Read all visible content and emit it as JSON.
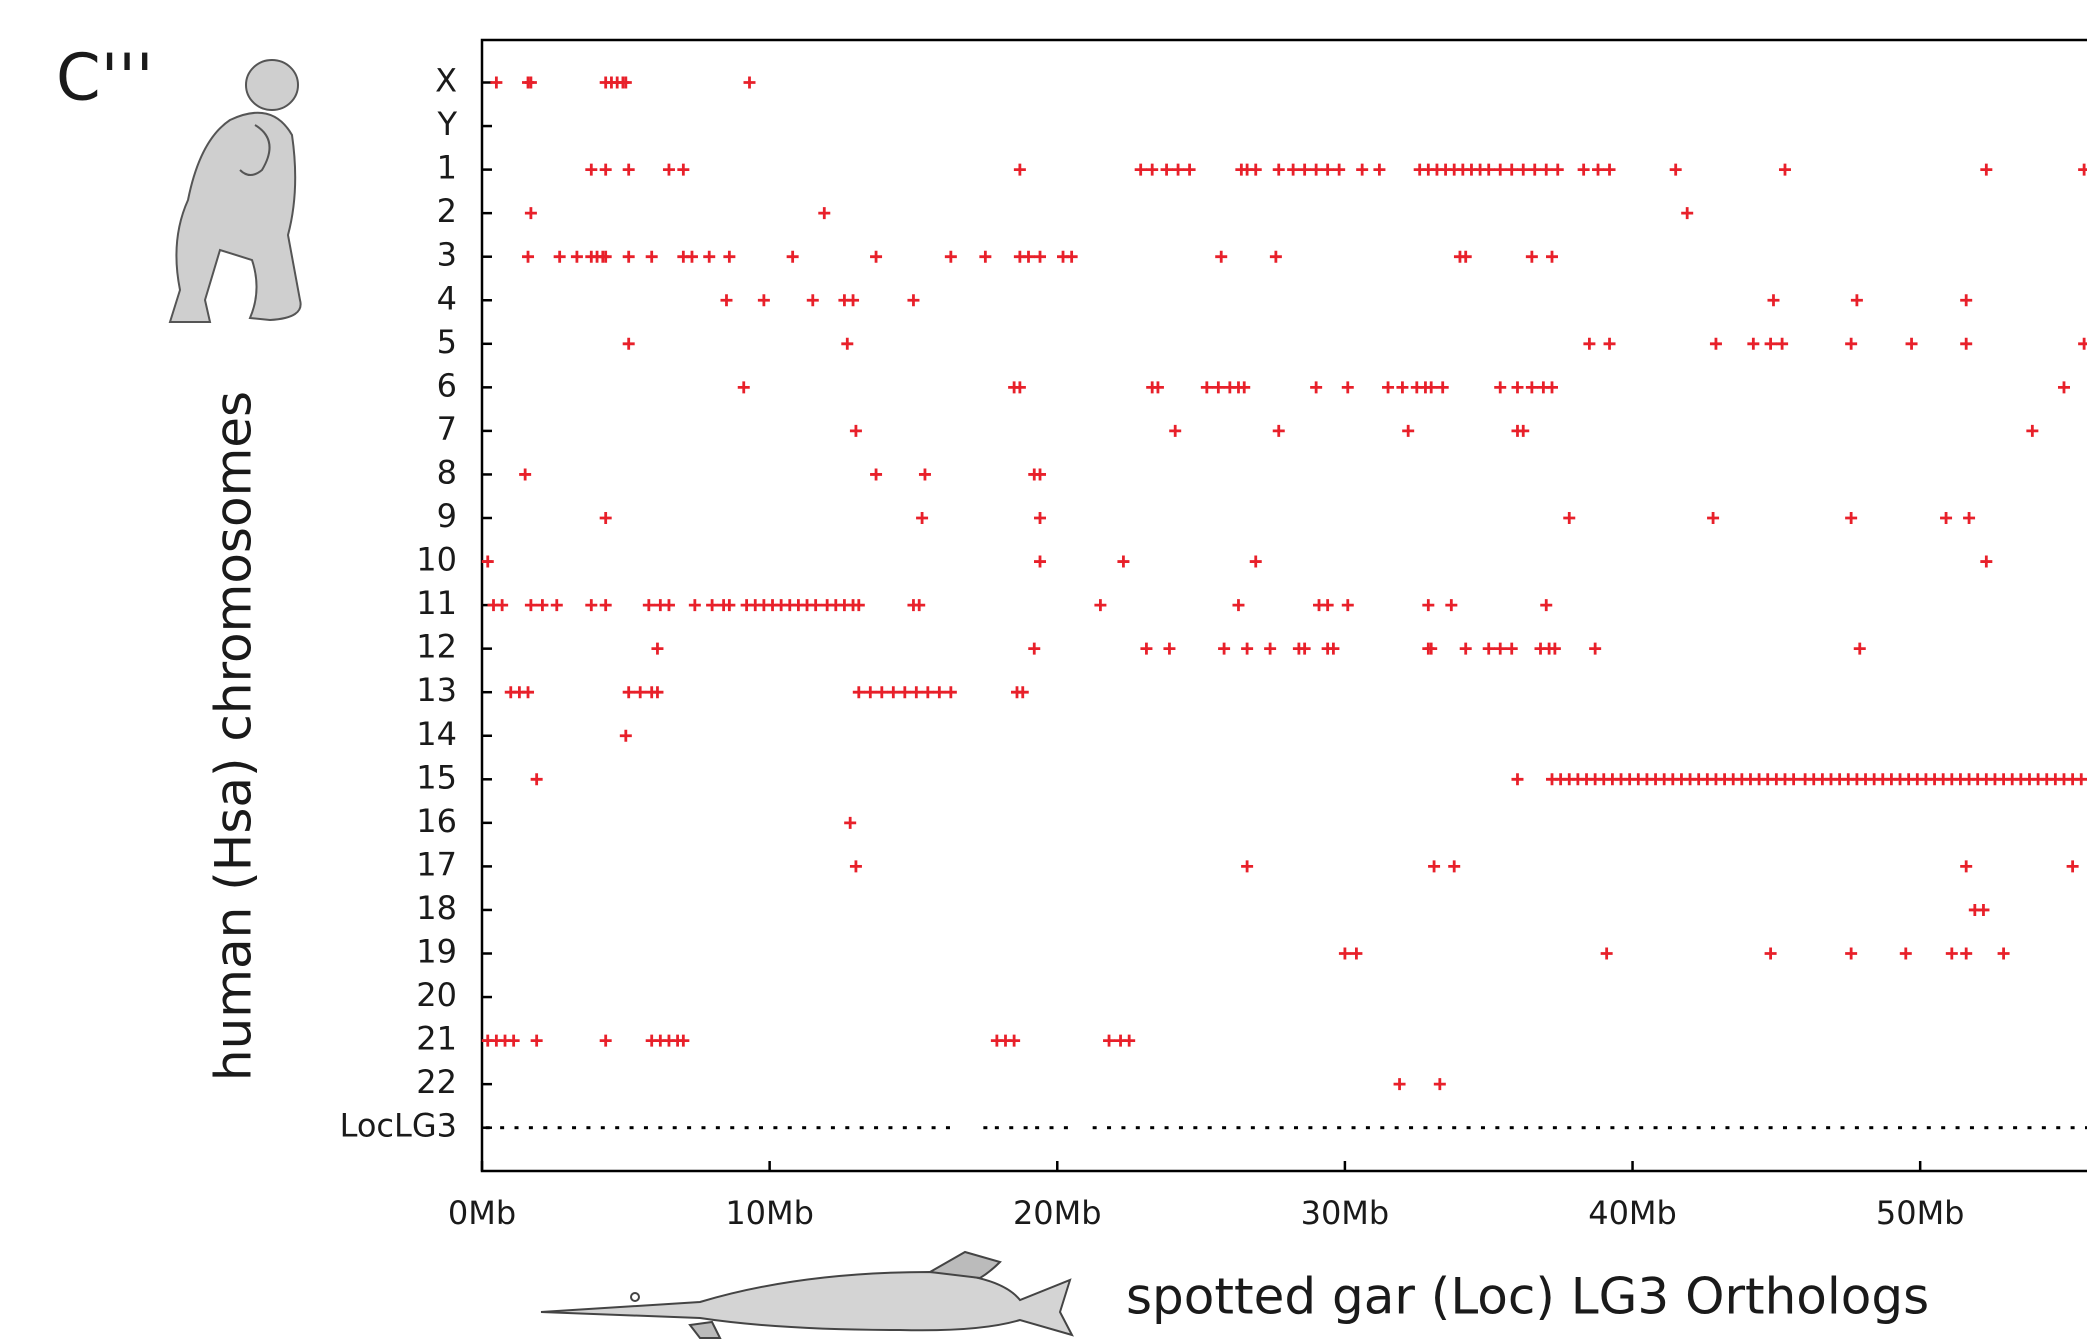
{
  "chart_data": {
    "type": "scatter",
    "panel_label": "C'''",
    "xlabel": "spotted gar (Loc) LG3 Orthologs",
    "ylabel": "human (Hsa) chromosomes",
    "xlim": [
      0,
      55.8
    ],
    "xticks": [
      {
        "value": 0,
        "label": "0Mb"
      },
      {
        "value": 10,
        "label": "10Mb"
      },
      {
        "value": 20,
        "label": "20Mb"
      },
      {
        "value": 30,
        "label": "30Mb"
      },
      {
        "value": 40,
        "label": "40Mb"
      },
      {
        "value": 50,
        "label": "50Mb"
      }
    ],
    "series": [
      {
        "name": "X",
        "color": "#e8202a",
        "marker": "plus",
        "x": [
          0.5,
          1.6,
          1.7,
          4.3,
          4.5,
          4.7,
          4.9,
          5.0,
          9.3
        ]
      },
      {
        "name": "Y",
        "color": "#e8202a",
        "marker": "plus",
        "x": []
      },
      {
        "name": "1",
        "color": "#e8202a",
        "marker": "plus",
        "x": [
          3.8,
          4.3,
          5.1,
          6.5,
          7.0,
          18.7,
          22.9,
          23.3,
          23.8,
          24.2,
          24.6,
          26.4,
          26.6,
          26.9,
          27.7,
          28.2,
          28.6,
          29.0,
          29.4,
          29.8,
          30.6,
          31.2,
          32.6,
          32.9,
          33.2,
          33.5,
          33.8,
          34.1,
          34.4,
          34.7,
          35.0,
          35.4,
          35.8,
          36.2,
          36.6,
          37.0,
          37.4,
          38.3,
          38.8,
          39.2,
          41.5,
          45.3,
          52.3,
          55.7
        ]
      },
      {
        "name": "2",
        "color": "#e8202a",
        "marker": "plus",
        "x": [
          1.7,
          11.9,
          41.9
        ]
      },
      {
        "name": "3",
        "color": "#e8202a",
        "marker": "plus",
        "x": [
          1.6,
          2.7,
          3.3,
          3.8,
          4.0,
          4.2,
          4.3,
          5.1,
          5.9,
          7.0,
          7.3,
          7.9,
          8.6,
          10.8,
          13.7,
          16.3,
          17.5,
          18.7,
          19.0,
          19.4,
          20.2,
          20.5,
          25.7,
          27.6,
          34.0,
          34.2,
          36.5,
          37.2
        ]
      },
      {
        "name": "4",
        "color": "#e8202a",
        "marker": "plus",
        "x": [
          8.5,
          9.8,
          11.5,
          12.6,
          12.9,
          15.0,
          44.9,
          47.8,
          51.6
        ]
      },
      {
        "name": "5",
        "color": "#e8202a",
        "marker": "plus",
        "x": [
          5.1,
          12.7,
          38.5,
          39.2,
          42.9,
          44.2,
          44.8,
          45.2,
          47.6,
          49.7,
          51.6,
          55.7
        ]
      },
      {
        "name": "6",
        "color": "#e8202a",
        "marker": "plus",
        "x": [
          9.1,
          18.5,
          18.7,
          23.3,
          23.5,
          25.2,
          25.6,
          26.0,
          26.3,
          26.5,
          29.0,
          30.1,
          31.5,
          32.0,
          32.5,
          32.8,
          33.0,
          33.4,
          35.4,
          36.0,
          36.5,
          36.9,
          37.2,
          55.0
        ]
      },
      {
        "name": "7",
        "color": "#e8202a",
        "marker": "plus",
        "x": [
          13.0,
          24.1,
          27.7,
          32.2,
          36.0,
          36.2,
          53.9
        ]
      },
      {
        "name": "8",
        "color": "#e8202a",
        "marker": "plus",
        "x": [
          1.5,
          13.7,
          15.4,
          19.2,
          19.4
        ]
      },
      {
        "name": "9",
        "color": "#e8202a",
        "marker": "plus",
        "x": [
          4.3,
          15.3,
          19.4,
          37.8,
          42.8,
          47.6,
          50.9,
          51.7
        ]
      },
      {
        "name": "10",
        "color": "#e8202a",
        "marker": "plus",
        "x": [
          0.2,
          19.4,
          22.3,
          26.9,
          52.3
        ]
      },
      {
        "name": "11",
        "color": "#e8202a",
        "marker": "plus",
        "x": [
          0.4,
          0.7,
          1.7,
          2.1,
          2.6,
          3.8,
          4.3,
          5.8,
          6.2,
          6.5,
          7.4,
          8.0,
          8.4,
          8.6,
          9.2,
          9.5,
          9.8,
          10.1,
          10.4,
          10.7,
          11.0,
          11.3,
          11.6,
          12.0,
          12.3,
          12.6,
          12.9,
          13.1,
          15.0,
          15.2,
          21.5,
          26.3,
          29.1,
          29.4,
          30.1,
          32.9,
          33.7,
          37.0
        ]
      },
      {
        "name": "12",
        "color": "#e8202a",
        "marker": "plus",
        "x": [
          6.1,
          19.2,
          23.1,
          23.9,
          25.8,
          26.6,
          27.4,
          28.4,
          28.6,
          29.4,
          29.6,
          32.9,
          33.0,
          34.2,
          35.0,
          35.4,
          35.8,
          36.8,
          37.1,
          37.3,
          38.7,
          47.9
        ]
      },
      {
        "name": "13",
        "color": "#e8202a",
        "marker": "plus",
        "x": [
          1.0,
          1.3,
          1.6,
          5.1,
          5.5,
          5.9,
          6.1,
          13.1,
          13.5,
          13.9,
          14.3,
          14.7,
          15.1,
          15.5,
          15.9,
          16.3,
          18.6,
          18.8
        ]
      },
      {
        "name": "14",
        "color": "#e8202a",
        "marker": "plus",
        "x": [
          5.0
        ]
      },
      {
        "name": "15",
        "color": "#e8202a",
        "marker": "plus",
        "x": [
          1.9,
          36.0,
          37.2,
          37.5,
          37.8,
          38.1,
          38.4,
          38.7,
          39.0,
          39.3,
          39.6,
          39.9,
          40.2,
          40.5,
          40.8,
          41.1,
          41.4,
          41.7,
          42.0,
          42.3,
          42.6,
          42.9,
          43.2,
          43.5,
          43.8,
          44.1,
          44.4,
          44.7,
          45.0,
          45.3,
          45.6,
          46.0,
          46.3,
          46.6,
          46.9,
          47.2,
          47.5,
          47.8,
          48.1,
          48.4,
          48.7,
          49.0,
          49.3,
          49.6,
          49.9,
          50.2,
          50.5,
          50.8,
          51.1,
          51.4,
          51.7,
          52.0,
          52.3,
          52.6,
          52.9,
          53.2,
          53.5,
          53.8,
          54.1,
          54.4,
          54.7,
          55.0,
          55.3,
          55.6
        ]
      },
      {
        "name": "16",
        "color": "#e8202a",
        "marker": "plus",
        "x": [
          12.8
        ]
      },
      {
        "name": "17",
        "color": "#e8202a",
        "marker": "plus",
        "x": [
          13.0,
          26.6,
          33.1,
          33.8,
          51.6,
          55.3
        ]
      },
      {
        "name": "18",
        "color": "#e8202a",
        "marker": "plus",
        "x": [
          51.9,
          52.2
        ]
      },
      {
        "name": "19",
        "color": "#e8202a",
        "marker": "plus",
        "x": [
          30.0,
          30.4,
          39.1,
          44.8,
          47.6,
          49.5,
          51.1,
          51.6,
          52.9
        ]
      },
      {
        "name": "20",
        "color": "#e8202a",
        "marker": "plus",
        "x": []
      },
      {
        "name": "21",
        "color": "#e8202a",
        "marker": "plus",
        "x": [
          0.2,
          0.5,
          0.8,
          1.1,
          1.9,
          4.3,
          5.9,
          6.2,
          6.5,
          6.8,
          7.0,
          17.9,
          18.2,
          18.5,
          21.8,
          22.2,
          22.5
        ]
      },
      {
        "name": "22",
        "color": "#e8202a",
        "marker": "plus",
        "x": [
          31.9,
          33.3
        ]
      },
      {
        "name": "LocLG3",
        "color": "#000000",
        "marker": "dot",
        "x": [
          0.2,
          0.7,
          1.2,
          1.7,
          2.2,
          2.7,
          3.2,
          3.7,
          4.2,
          4.7,
          5.2,
          5.7,
          6.2,
          6.7,
          7.2,
          7.7,
          8.2,
          8.7,
          9.2,
          9.7,
          10.2,
          10.7,
          11.2,
          11.7,
          12.2,
          12.7,
          13.2,
          13.7,
          14.2,
          14.7,
          15.2,
          15.7,
          16.2,
          17.5,
          17.9,
          18.4,
          18.9,
          19.3,
          19.8,
          20.3,
          21.3,
          21.8,
          22.3,
          22.8,
          23.3,
          23.8,
          24.3,
          24.8,
          25.3,
          25.8,
          26.3,
          26.8,
          27.3,
          27.8,
          28.3,
          28.8,
          29.3,
          29.8,
          30.3,
          30.8,
          31.3,
          31.8,
          32.3,
          32.8,
          33.3,
          33.8,
          34.3,
          34.8,
          35.3,
          35.8,
          36.3,
          36.8,
          37.3,
          37.8,
          38.3,
          38.8,
          39.3,
          39.8,
          40.3,
          40.8,
          41.3,
          41.8,
          42.3,
          42.8,
          43.3,
          43.8,
          44.3,
          44.8,
          45.3,
          45.8,
          46.3,
          46.8,
          47.3,
          47.8,
          48.3,
          48.8,
          49.3,
          49.8,
          50.3,
          50.8,
          51.3,
          51.8,
          52.3,
          52.8,
          53.3,
          53.8,
          54.3,
          54.8,
          55.3,
          55.8
        ]
      }
    ]
  }
}
